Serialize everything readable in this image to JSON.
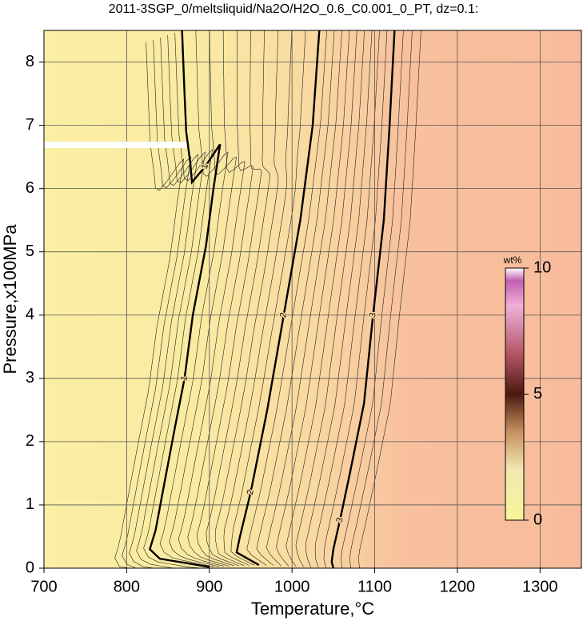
{
  "chart_data": {
    "type": "contour",
    "title": "2011-3SGP_0/meltsliquid/Na2O/H2O_0.6_C0.001_0_PT, dz=0.1:",
    "xlabel": "Temperature,°C",
    "ylabel": "Pressure,x100MPa",
    "xlim": [
      700,
      1350
    ],
    "xticks": [
      700,
      800,
      900,
      1000,
      1100,
      1200,
      1300
    ],
    "ylim": [
      0,
      8.5
    ],
    "yticks": [
      0,
      1,
      2,
      3,
      4,
      5,
      6,
      7,
      8
    ],
    "grid": true,
    "series": [
      {
        "name": "1",
        "color": "#000000",
        "x": [
          867,
          870,
          872,
          877,
          879,
          895,
          913,
          905,
          896,
          880,
          870,
          858,
          845,
          835,
          828,
          840,
          900
        ],
        "values": [
          8.5,
          7.5,
          6.9,
          6.4,
          6.1,
          6.35,
          6.7,
          6.0,
          5.1,
          4.0,
          3.0,
          2.2,
          1.3,
          0.6,
          0.3,
          0.15,
          0.02
        ]
      },
      {
        "name": "2",
        "color": "#000000",
        "x": [
          1033,
          1025,
          1010,
          990,
          970,
          950,
          937,
          933,
          960
        ],
        "values": [
          8.5,
          7.0,
          5.5,
          4.0,
          2.5,
          1.2,
          0.5,
          0.25,
          0.05
        ]
      },
      {
        "name": "3",
        "color": "#000000",
        "x": [
          1124,
          1118,
          1111,
          1098,
          1087,
          1070,
          1058,
          1050,
          1048,
          1050
        ],
        "values": [
          8.5,
          7.0,
          5.5,
          4.0,
          2.6,
          1.5,
          0.76,
          0.3,
          0.1,
          0
        ]
      }
    ],
    "colorbar": {
      "label": "wt%",
      "clim": [
        0,
        10
      ],
      "ticks": [
        0,
        5,
        10
      ]
    }
  }
}
